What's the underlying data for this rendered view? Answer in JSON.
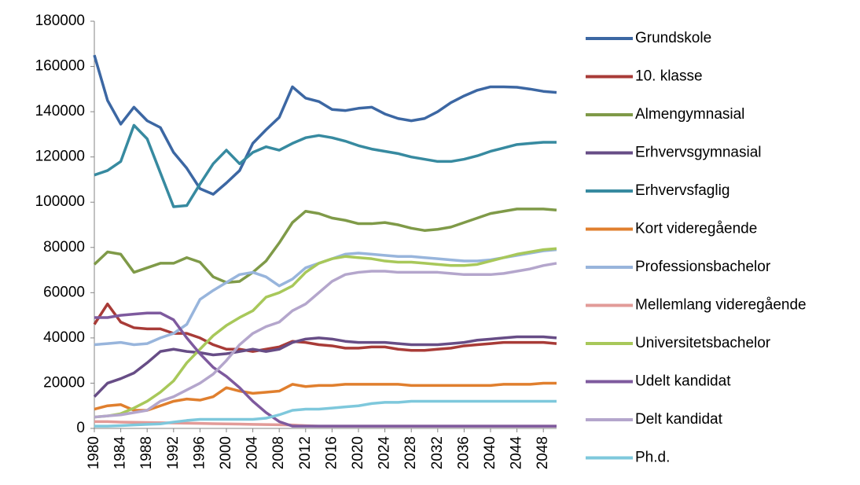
{
  "chart_data": {
    "type": "line",
    "x": [
      1980,
      1982,
      1984,
      1986,
      1988,
      1990,
      1992,
      1994,
      1996,
      1998,
      2000,
      2002,
      2004,
      2006,
      2008,
      2010,
      2012,
      2014,
      2016,
      2018,
      2020,
      2022,
      2024,
      2026,
      2028,
      2030,
      2032,
      2034,
      2036,
      2038,
      2040,
      2042,
      2044,
      2046,
      2048,
      2050
    ],
    "xlim": [
      1980,
      2050
    ],
    "xticks": [
      1980,
      1984,
      1988,
      1992,
      1996,
      2000,
      2004,
      2008,
      2012,
      2016,
      2020,
      2024,
      2028,
      2032,
      2036,
      2040,
      2044,
      2048
    ],
    "ylim": [
      0,
      180000
    ],
    "yticks": [
      0,
      20000,
      40000,
      60000,
      80000,
      100000,
      120000,
      140000,
      160000,
      180000
    ],
    "grid": false,
    "legend": "right",
    "series": [
      {
        "name": "Grundskole",
        "color": "#3c67a3",
        "values": [
          165000,
          145000,
          134500,
          142000,
          136000,
          133000,
          122000,
          115000,
          106000,
          103500,
          108500,
          114000,
          126000,
          132000,
          137500,
          151000,
          146000,
          144500,
          141000,
          140500,
          141500,
          142000,
          139000,
          137000,
          136000,
          137000,
          140000,
          144000,
          147000,
          149500,
          151000,
          151000,
          150800,
          150000,
          149000,
          148500
        ]
      },
      {
        "name": "10. klasse",
        "color": "#a83b37",
        "values": [
          46000,
          55000,
          47000,
          44500,
          44000,
          44000,
          42000,
          42000,
          40000,
          37000,
          35000,
          35000,
          34000,
          35000,
          36000,
          38500,
          38000,
          37000,
          36500,
          35500,
          35500,
          36000,
          36000,
          35000,
          34500,
          34500,
          35000,
          35500,
          36500,
          37000,
          37500,
          38000,
          38000,
          38000,
          38000,
          37500
        ]
      },
      {
        "name": "Almengymnasial",
        "color": "#7f9a48",
        "values": [
          72500,
          78000,
          77000,
          69000,
          71000,
          73000,
          73000,
          75500,
          73500,
          67000,
          64500,
          65000,
          69000,
          74000,
          82000,
          91000,
          96000,
          95000,
          93000,
          92000,
          90500,
          90500,
          91000,
          90000,
          88500,
          87500,
          88000,
          89000,
          91000,
          93000,
          95000,
          96000,
          97000,
          97000,
          97000,
          96500
        ]
      },
      {
        "name": "Erhvervsgymnasial",
        "color": "#674d86",
        "values": [
          14000,
          20000,
          22000,
          24500,
          29000,
          34000,
          35000,
          34000,
          33500,
          32500,
          33000,
          34000,
          35000,
          34000,
          35000,
          38000,
          39500,
          40000,
          39500,
          38500,
          38000,
          38000,
          38000,
          37500,
          37000,
          37000,
          37000,
          37500,
          38000,
          39000,
          39500,
          40000,
          40500,
          40500,
          40500,
          40000
        ]
      },
      {
        "name": "Erhvervsfaglig",
        "color": "#378aa0",
        "values": [
          112000,
          114000,
          118000,
          134000,
          128000,
          113000,
          98000,
          98500,
          108000,
          117000,
          123000,
          117000,
          122000,
          124500,
          123000,
          126000,
          128500,
          129500,
          128500,
          127000,
          125000,
          123500,
          122500,
          121500,
          120000,
          119000,
          118000,
          118000,
          119000,
          120500,
          122500,
          124000,
          125500,
          126000,
          126500,
          126500
        ]
      },
      {
        "name": "Kort videregående",
        "color": "#e07f2e",
        "values": [
          8500,
          10000,
          10500,
          8000,
          8000,
          10000,
          12000,
          13000,
          12500,
          14000,
          18000,
          16500,
          15500,
          16000,
          16500,
          19500,
          18500,
          19000,
          19000,
          19500,
          19500,
          19500,
          19500,
          19500,
          19000,
          19000,
          19000,
          19000,
          19000,
          19000,
          19000,
          19500,
          19500,
          19500,
          20000,
          20000
        ]
      },
      {
        "name": "Professionsbachelor",
        "color": "#98b5dc",
        "values": [
          37000,
          37500,
          38000,
          37000,
          37500,
          40000,
          42000,
          46000,
          57000,
          61000,
          64500,
          68000,
          69000,
          67000,
          63000,
          66000,
          71000,
          73000,
          75000,
          77000,
          77500,
          77000,
          76500,
          76000,
          76000,
          75500,
          75000,
          74500,
          74000,
          74000,
          74500,
          75500,
          76500,
          77500,
          78500,
          79000
        ]
      },
      {
        "name": "Mellemlang videregående",
        "color": "#e29b98",
        "values": [
          3000,
          3000,
          2800,
          2700,
          2600,
          2500,
          2400,
          2300,
          2200,
          2100,
          2000,
          1900,
          1800,
          1700,
          1600,
          1500,
          1200,
          1000,
          1000,
          1000,
          1000,
          1000,
          1000,
          1000,
          1000,
          1000,
          1000,
          1000,
          1000,
          1000,
          1000,
          1000,
          1000,
          1000,
          1000,
          1000
        ]
      },
      {
        "name": "Universitetsbachelor",
        "color": "#a8c85a",
        "values": [
          5000,
          5500,
          6500,
          9000,
          12000,
          16000,
          21000,
          29000,
          35000,
          41000,
          45500,
          49000,
          52000,
          58000,
          60000,
          63000,
          69000,
          73000,
          75000,
          76000,
          75500,
          75000,
          74000,
          73500,
          73500,
          73000,
          72500,
          72000,
          72000,
          72500,
          74000,
          75500,
          77000,
          78000,
          79000,
          79500
        ]
      },
      {
        "name": "Udelt kandidat",
        "color": "#7e5a9e",
        "values": [
          49000,
          49000,
          50000,
          50500,
          51000,
          51000,
          48000,
          40000,
          33000,
          27000,
          23000,
          18000,
          12000,
          7000,
          3000,
          1000,
          1000,
          1000,
          1000,
          1000,
          1000,
          1000,
          1000,
          1000,
          1000,
          1000,
          1000,
          1000,
          1000,
          1000,
          1000,
          1000,
          1000,
          1000,
          1000,
          1000
        ]
      },
      {
        "name": "Delt kandidat",
        "color": "#b4a6cc",
        "values": [
          5000,
          5500,
          6000,
          7000,
          8000,
          12000,
          14000,
          17000,
          20000,
          24000,
          30000,
          37000,
          42000,
          45000,
          47000,
          52000,
          55000,
          60000,
          65000,
          68000,
          69000,
          69500,
          69500,
          69000,
          69000,
          69000,
          69000,
          68500,
          68000,
          68000,
          68000,
          68500,
          69500,
          70500,
          72000,
          73000
        ]
      },
      {
        "name": "Ph.d.",
        "color": "#7ec8dc",
        "values": [
          1000,
          1000,
          1200,
          1500,
          1800,
          2000,
          2800,
          3500,
          4000,
          4000,
          4000,
          4000,
          4000,
          4500,
          6000,
          8000,
          8500,
          8500,
          9000,
          9500,
          10000,
          11000,
          11500,
          11500,
          12000,
          12000,
          12000,
          12000,
          12000,
          12000,
          12000,
          12000,
          12000,
          12000,
          12000,
          12000
        ]
      }
    ]
  }
}
